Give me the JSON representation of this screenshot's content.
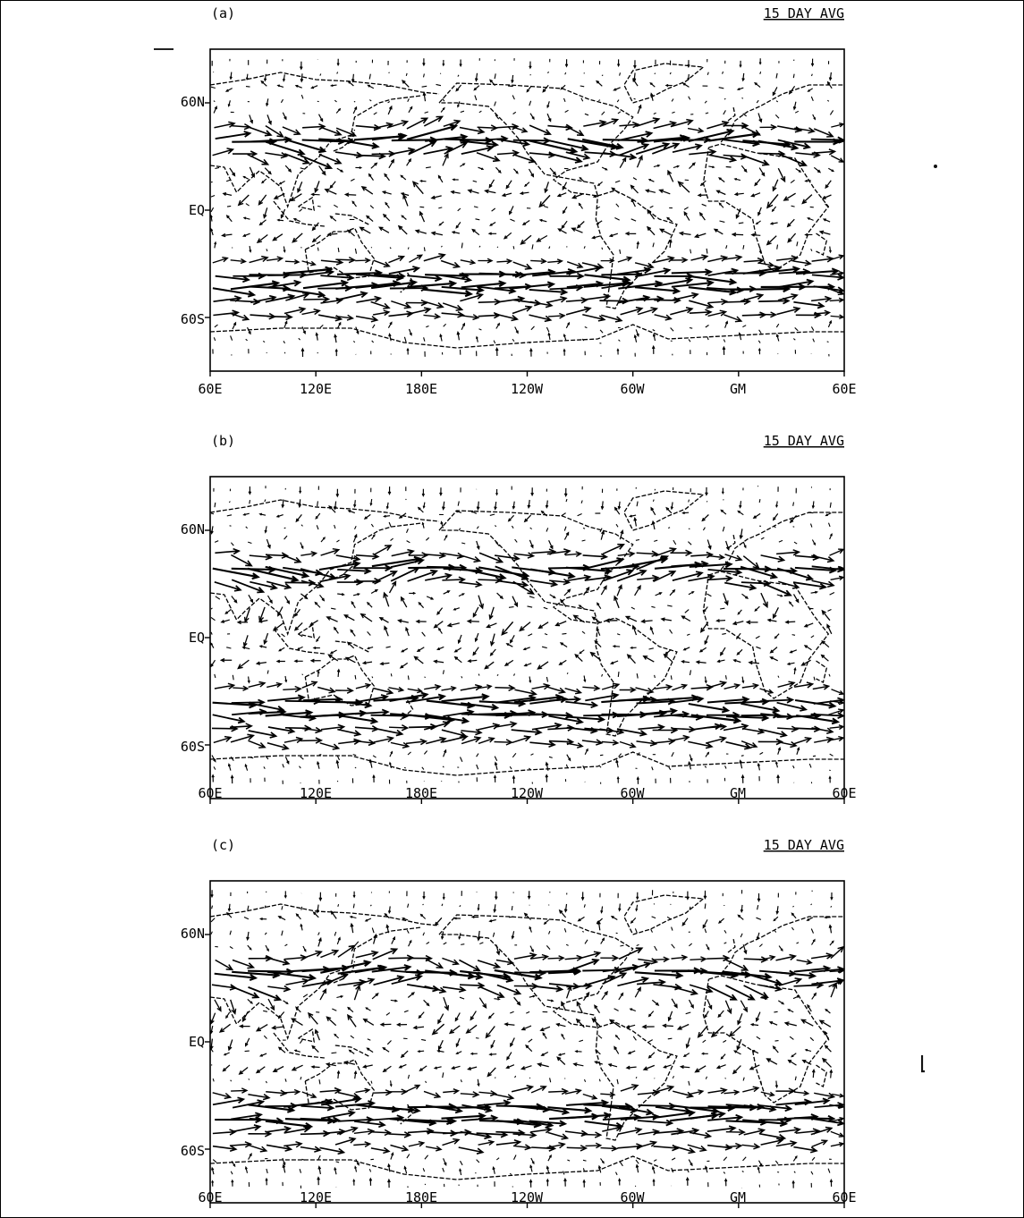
{
  "panels": [
    {
      "id": "a",
      "label": "(a)",
      "avg_label": "15 DAY AVG",
      "seed": 11,
      "lat_labels": [
        "60N",
        "EQ",
        "60S"
      ],
      "lon_labels": [
        "60E",
        "120E",
        "180E",
        "120W",
        "60W",
        "GM",
        "60E"
      ]
    },
    {
      "id": "b",
      "label": "(b)",
      "avg_label": "15 DAY AVG",
      "seed": 23,
      "lat_labels": [
        "60N",
        "EQ",
        "60S"
      ],
      "lon_labels": [
        "60E",
        "120E",
        "180E",
        "120W",
        "60W",
        "GM",
        "60E"
      ]
    },
    {
      "id": "c",
      "label": "(c)",
      "avg_label": "15 DAY AVG",
      "seed": 37,
      "lat_labels": [
        "60N",
        "EQ",
        "60S"
      ],
      "lon_labels": [
        "60E",
        "120E",
        "180E",
        "120W",
        "60W",
        "GM",
        "60E"
      ]
    }
  ],
  "map": {
    "lon_range": [
      60,
      420
    ],
    "lat_range": [
      -90,
      90
    ],
    "lat_ticks": [
      60,
      0,
      -60
    ],
    "lon_ticks": [
      60,
      120,
      180,
      240,
      300,
      360,
      420
    ],
    "field": "wind vectors (15 day average)",
    "colors": {
      "ink": "#000000",
      "background": "#ffffff"
    }
  }
}
